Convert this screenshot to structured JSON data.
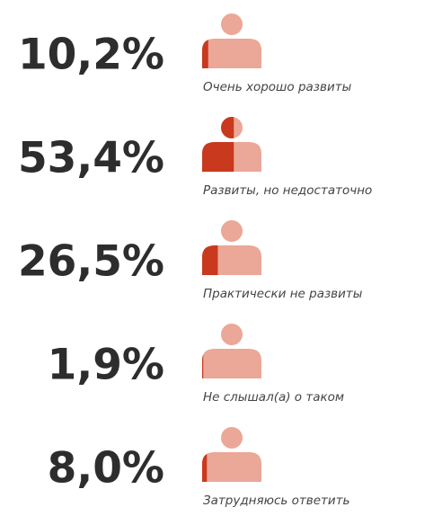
{
  "chart_data": {
    "type": "pictogram",
    "categories": [
      "Очень хорошо развиты",
      "Развиты, но недостаточно",
      "Практически не развиты",
      "Не слышал(а) о таком",
      "Затрудняюсь ответить"
    ],
    "values": [
      10.2,
      53.4,
      26.5,
      1.9,
      8.0
    ],
    "value_labels": [
      "10,2%",
      "53,4%",
      "26,5%",
      "1,9%",
      "8,0%"
    ],
    "color": "#c8391e",
    "base_color": "#eba797"
  }
}
